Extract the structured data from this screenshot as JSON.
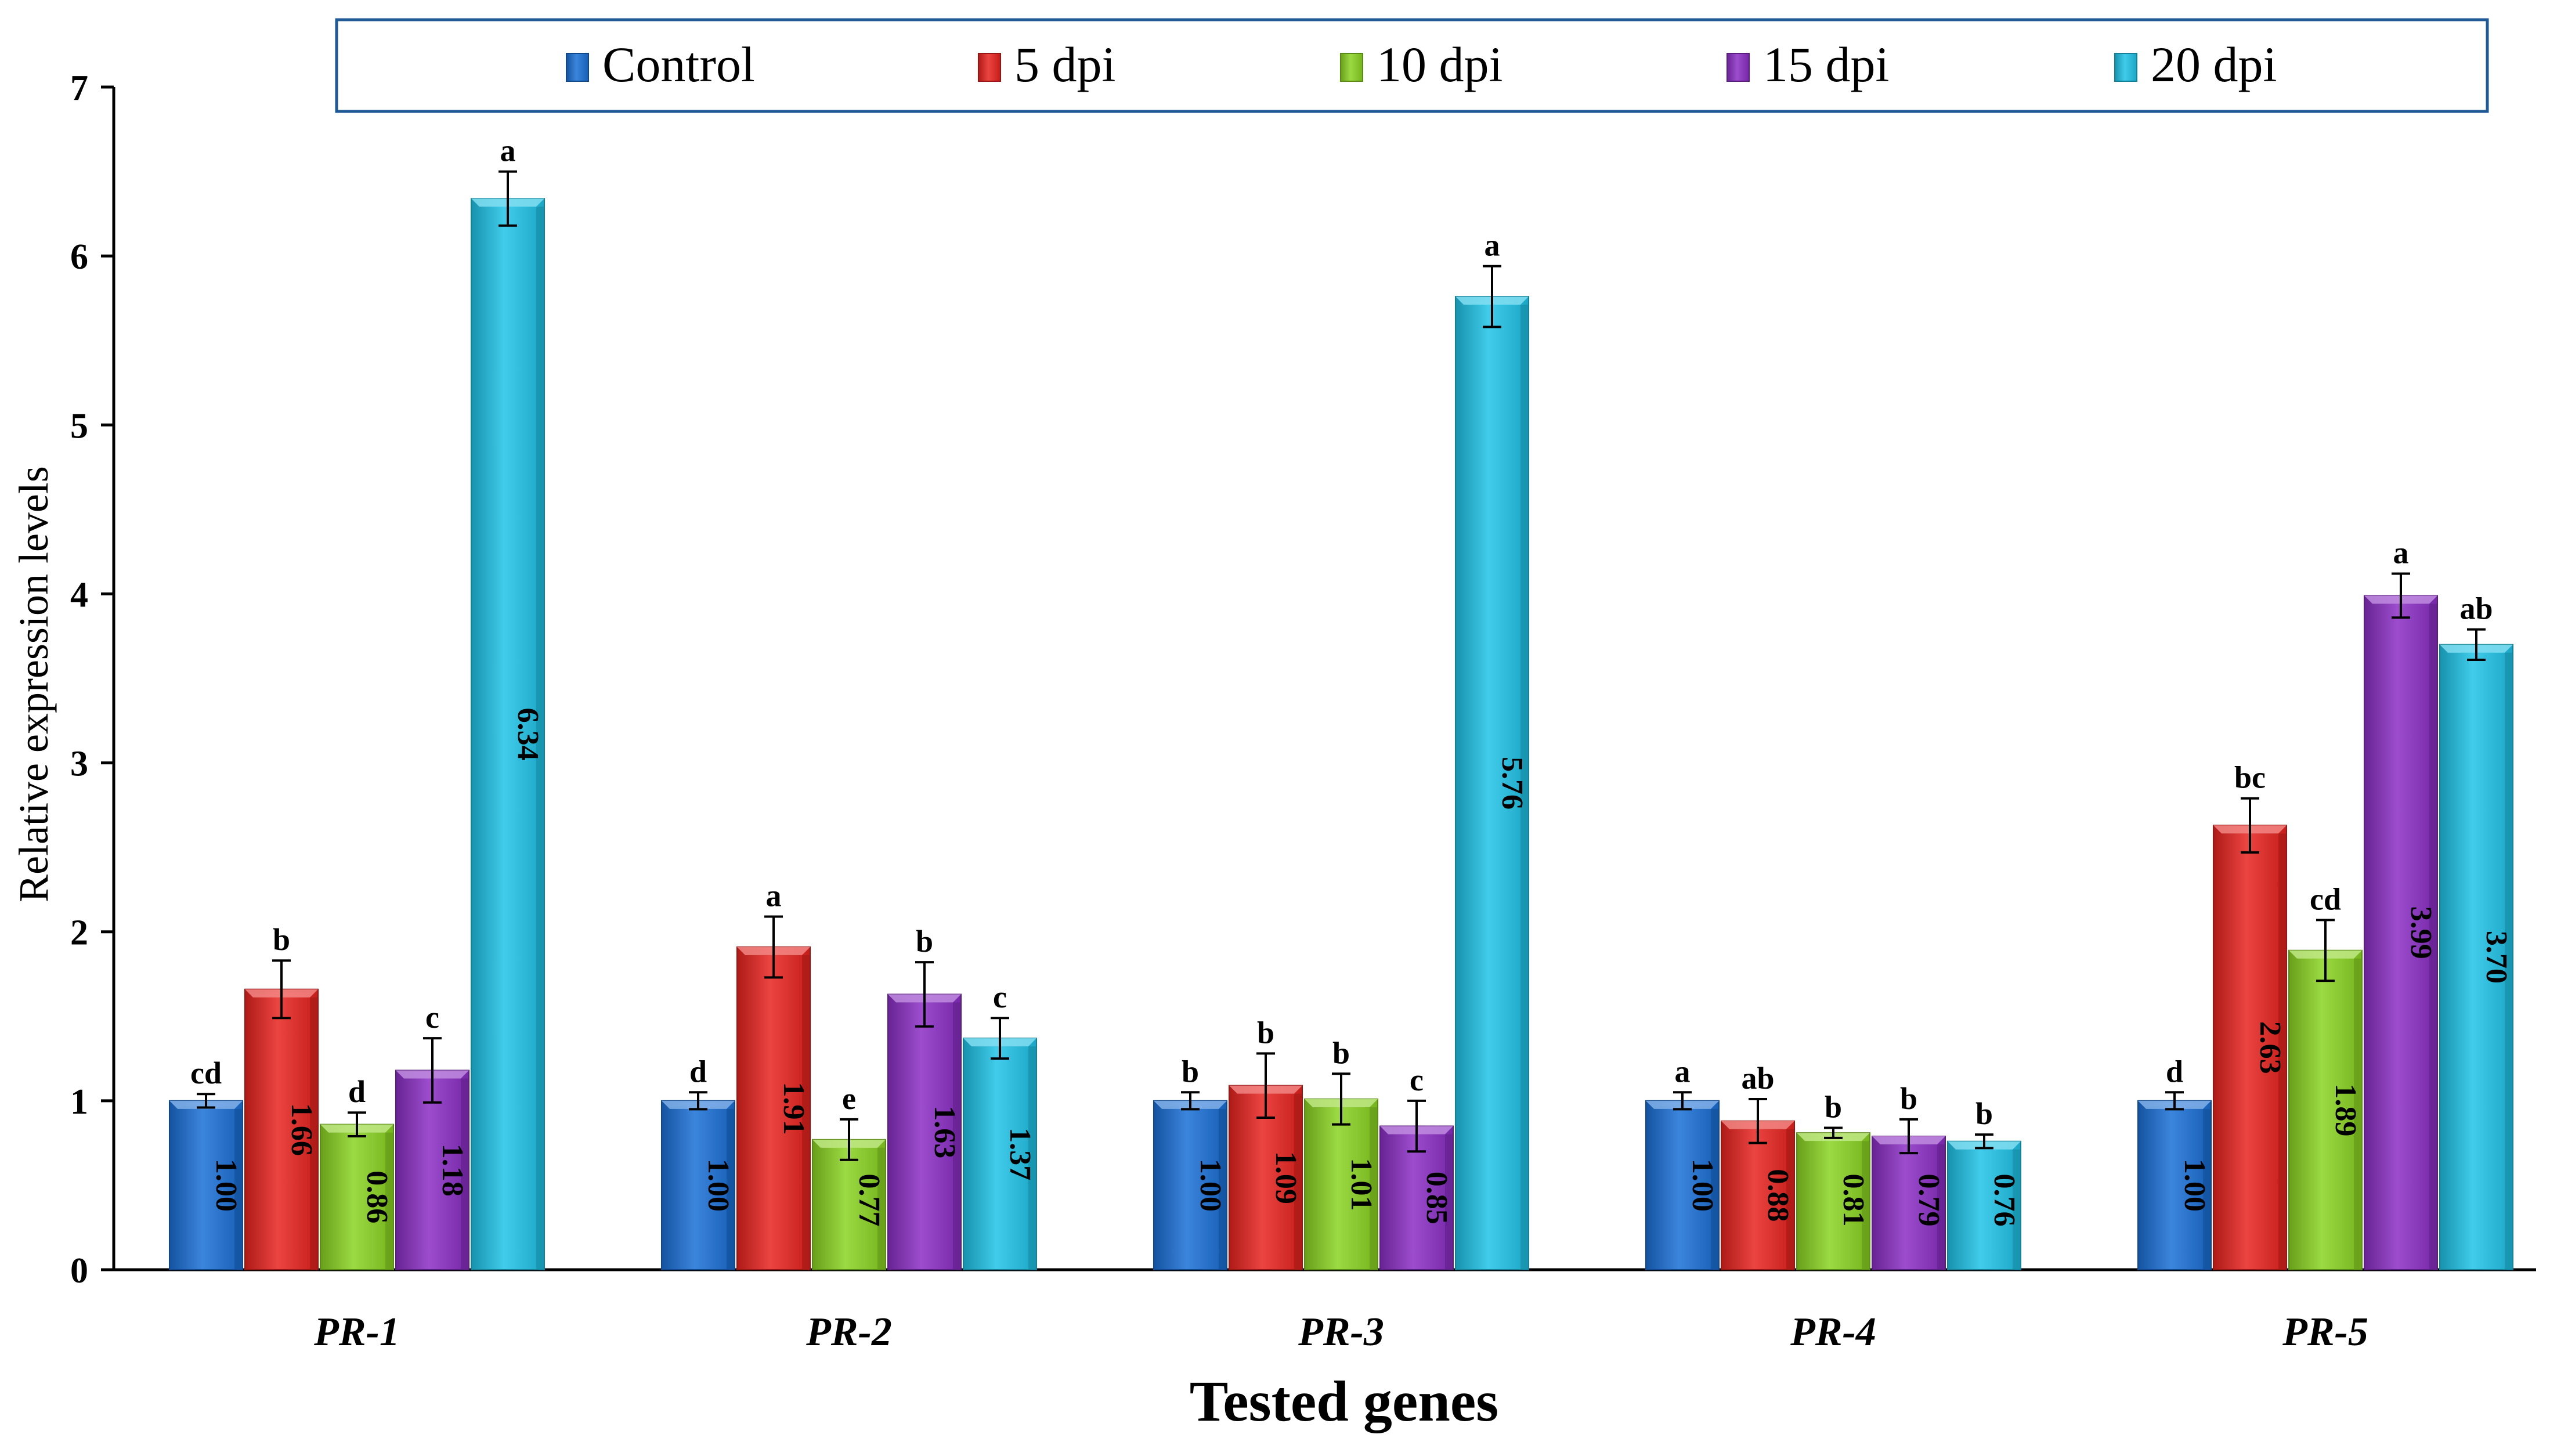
{
  "chart_data": {
    "type": "bar",
    "title": "",
    "xlabel": "Tested genes",
    "ylabel": "Relative expression levels",
    "ylim": [
      0,
      7
    ],
    "yticks": [
      0,
      1,
      2,
      3,
      4,
      5,
      6,
      7
    ],
    "grid": false,
    "legend_position": "top",
    "categories": [
      "PR-1",
      "PR-2",
      "PR-3",
      "PR-4",
      "PR-5"
    ],
    "series": [
      {
        "name": "Control",
        "color": "#1a6fd6",
        "values": [
          1.0,
          1.0,
          1.0,
          1.0,
          1.0
        ],
        "value_labels": [
          "1.00",
          "1.00",
          "1.00",
          "1.00",
          "1.00"
        ],
        "errors": [
          0.04,
          0.05,
          0.05,
          0.05,
          0.05
        ],
        "letters": [
          "cd",
          "d",
          "b",
          "a",
          "d"
        ]
      },
      {
        "name": "5 dpi",
        "color": "#e8231f",
        "values": [
          1.66,
          1.91,
          1.09,
          0.88,
          2.63
        ],
        "value_labels": [
          "1.66",
          "1.91",
          "1.09",
          "0.88",
          "2.63"
        ],
        "errors": [
          0.17,
          0.18,
          0.19,
          0.13,
          0.16
        ],
        "letters": [
          "b",
          "a",
          "b",
          "ab",
          "bc"
        ]
      },
      {
        "name": "10 dpi",
        "color": "#8bd422",
        "values": [
          0.86,
          0.77,
          1.01,
          0.81,
          1.89
        ],
        "value_labels": [
          "0.86",
          "0.77",
          "1.01",
          "0.81",
          "1.89"
        ],
        "errors": [
          0.07,
          0.12,
          0.15,
          0.03,
          0.18
        ],
        "letters": [
          "d",
          "e",
          "b",
          "b",
          "cd"
        ]
      },
      {
        "name": "15 dpi",
        "color": "#8a2ec4",
        "values": [
          1.18,
          1.63,
          0.85,
          0.79,
          3.99
        ],
        "value_labels": [
          "1.18",
          "1.63",
          "0.85",
          "0.79",
          "3.99"
        ],
        "errors": [
          0.19,
          0.19,
          0.15,
          0.1,
          0.13
        ],
        "letters": [
          "c",
          "b",
          "c",
          "b",
          "a"
        ]
      },
      {
        "name": "20 dpi",
        "color": "#1ec3e6",
        "values": [
          6.34,
          1.37,
          5.76,
          0.76,
          3.7
        ],
        "value_labels": [
          "6.34",
          "1.37",
          "5.76",
          "0.76",
          "3.70"
        ],
        "errors": [
          0.16,
          0.12,
          0.18,
          0.04,
          0.09
        ],
        "letters": [
          "a",
          "c",
          "a",
          "b",
          "ab"
        ]
      }
    ]
  }
}
